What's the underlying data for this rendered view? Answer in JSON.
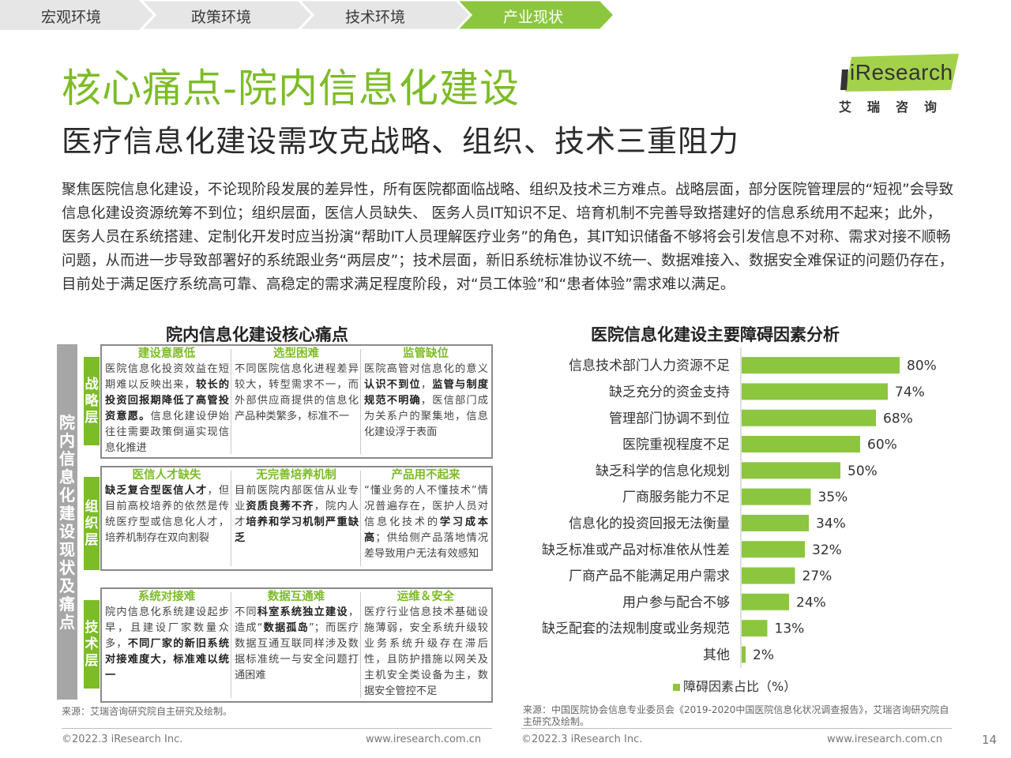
{
  "nav": {
    "items": [
      "宏观环境",
      "政策环境",
      "技术环境",
      "产业现状"
    ],
    "active_index": 3
  },
  "logo": {
    "brand": "iResearch",
    "sub": "艾瑞咨询"
  },
  "title": "核心痛点-院内信息化建设",
  "subtitle": "医疗信息化建设需攻克战略、组织、技术三重阻力",
  "paragraph": "聚焦医院信息化建设，不论现阶段发展的差异性，所有医院都面临战略、组织及技术三方难点。战略层面，部分医院管理层的“短视”会导致信息化建设资源统筹不到位；组织层面，医信人员缺失、 医务人员IT知识不足、培育机制不完善导致搭建好的信息系统用不起来；此外，医务人员在系统搭建、定制化开发时应当扮演“帮助IT人员理解医疗业务”的角色，其IT知识储备不够将会引发信息不对称、需求对接不顺畅问题，从而进一步导致部署好的系统跟业务“两层皮”；技术层面，新旧系统标准协议不统一、数据难接入、数据安全难保证的问题仍存在，目前处于满足医疗系统高可靠、高稳定的需求满足程度阶段，对“员工体验”和“患者体验”需求难以满足。",
  "left": {
    "title": "院内信息化建设核心痛点",
    "vertical_label": "院内信息化建设现状及痛点",
    "layers": [
      {
        "name": "战略层",
        "cells": [
          {
            "head": "建设意愿低",
            "body_html": "医院信息化投资效益在短期难以反映出来，<b>较长的投资回报期降低了高管投资意愿。</b>信息化建设伊始往往需要政策倒逼实现信息化推进"
          },
          {
            "head": "选型困难",
            "body_html": "不同医院信息化进程差异较大，转型需求不一，而外部供应商提供的信息化产品种类繁多，标准不一"
          },
          {
            "head": "监管缺位",
            "body_html": "医院高管对信息化的意义<b>认识不到位</b>，<b>监管与制度规范不明确</b>，医信部门成为关系户的聚集地，信息化建设浮于表面"
          }
        ]
      },
      {
        "name": "组织层",
        "cells": [
          {
            "head": "医信人才缺失",
            "body_html": "<b>缺乏复合型医信人才</b>，但目前高校培养的依然是传统医疗型或信息化人才，培养机制存在双向割裂"
          },
          {
            "head": "无完善培养机制",
            "body_html": "目前医院内部医信从业专业<b>资质良莠不齐</b>，院内人才<b>培养和学习机制严重缺乏</b>"
          },
          {
            "head": "产品用不起来",
            "body_html": "“懂业务的人不懂技术”情况普遍存在，医护人员对信息化技术的<b>学习成本高</b>；供给侧产品落地情况差导致用户无法有效感知"
          }
        ]
      },
      {
        "name": "技术层",
        "cells": [
          {
            "head": "系统对接难",
            "body_html": "院内信息化系统建设起步早，且建设厂家数量众多，<b>不同厂家的新旧系统对接难度大，标准难以统一</b>"
          },
          {
            "head": "数据互通难",
            "body_html": "不同<b>科室系统独立建设</b>，造成“<b>数据孤岛</b>”；而医疗数据互通互联同样涉及数据标准统一与安全问题打通困难"
          },
          {
            "head": "运维＆安全",
            "body_html": "医疗行业信息技术基础设施薄弱，安全系统升级较业务系统升级存在滞后性，且防护措施以网关及主机安全类设备为主，数据安全管控不足"
          }
        ]
      }
    ],
    "source": "来源：艾瑞咨询研究院自主研究及绘制。"
  },
  "chart_data": {
    "type": "bar",
    "orientation": "horizontal",
    "title": "医院信息化建设主要障碍因素分析",
    "categories": [
      "信息技术部门人力资源不足",
      "缺乏充分的资金支持",
      "管理部门协调不到位",
      "医院重视程度不足",
      "缺乏科学的信息化规划",
      "厂商服务能力不足",
      "信息化的投资回报无法衡量",
      "缺乏标准或产品对标准依从性差",
      "厂商产品不能满足用户需求",
      "用户参与配合不够",
      "缺乏配套的法规制度或业务规范",
      "其他"
    ],
    "series": [
      {
        "name": "障碍因素占比（%）",
        "values": [
          80,
          74,
          68,
          60,
          50,
          35,
          34,
          32,
          27,
          24,
          13,
          2
        ]
      }
    ],
    "value_labels": [
      "80%",
      "74%",
      "68%",
      "60%",
      "50%",
      "35%",
      "34%",
      "32%",
      "27%",
      "24%",
      "13%",
      "2%"
    ],
    "xlim": [
      0,
      100
    ],
    "color": "#8cc63f",
    "grid": false,
    "legend_position": "bottom"
  },
  "right_source": "来源：中国医院协会信息专业委员会《2019-2020中国医院信息化状况调查报告》，艾瑞咨询研究院自主研究及绘制。",
  "footer": {
    "left_copyright": "©2022.3 iResearch Inc.",
    "left_url": "www.iresearch.com.cn",
    "right_copyright": "©2022.3 iResearch Inc.",
    "right_url": "www.iresearch.com.cn",
    "page_number": "14"
  }
}
